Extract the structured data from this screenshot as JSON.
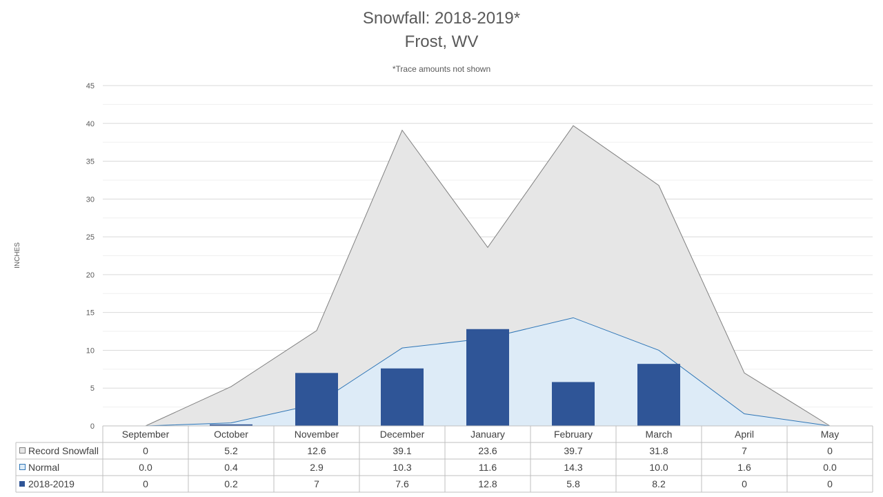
{
  "chart_data": {
    "type": "area",
    "title": "Snowfall: 2018-2019*",
    "title_line2": "Frost, WV",
    "subtitle": "*Trace amounts not shown",
    "ylabel": "INCHES",
    "xlabel": "",
    "ylim": [
      0,
      45
    ],
    "yticks": [
      0,
      5,
      10,
      15,
      20,
      25,
      30,
      35,
      40,
      45
    ],
    "grid": true,
    "legend_placement": "data-table-left",
    "categories": [
      "September",
      "October",
      "November",
      "December",
      "January",
      "February",
      "March",
      "April",
      "May"
    ],
    "series": [
      {
        "name": "Record Snowfall",
        "kind": "area",
        "color": "#e6e6e6",
        "line_color": "#7f7f7f",
        "values": [
          0,
          5.2,
          12.6,
          39.1,
          23.6,
          39.7,
          31.8,
          7,
          0
        ],
        "labels": [
          "0",
          "5.2",
          "12.6",
          "39.1",
          "23.6",
          "39.7",
          "31.8",
          "7",
          "0"
        ]
      },
      {
        "name": "Normal",
        "kind": "area",
        "color": "#ddebf7",
        "line_color": "#2e75b6",
        "values": [
          0.0,
          0.4,
          2.9,
          10.3,
          11.6,
          14.3,
          10.0,
          1.6,
          0.0
        ],
        "labels": [
          "0.0",
          "0.4",
          "2.9",
          "10.3",
          "11.6",
          "14.3",
          "10.0",
          "1.6",
          "0.0"
        ]
      },
      {
        "name": "2018-2019",
        "kind": "bar",
        "color": "#2f5597",
        "values": [
          0,
          0.2,
          7,
          7.6,
          12.8,
          5.8,
          8.2,
          0,
          0
        ],
        "labels": [
          "0",
          "0.2",
          "7",
          "7.6",
          "12.8",
          "5.8",
          "8.2",
          "0",
          "0"
        ]
      }
    ]
  }
}
